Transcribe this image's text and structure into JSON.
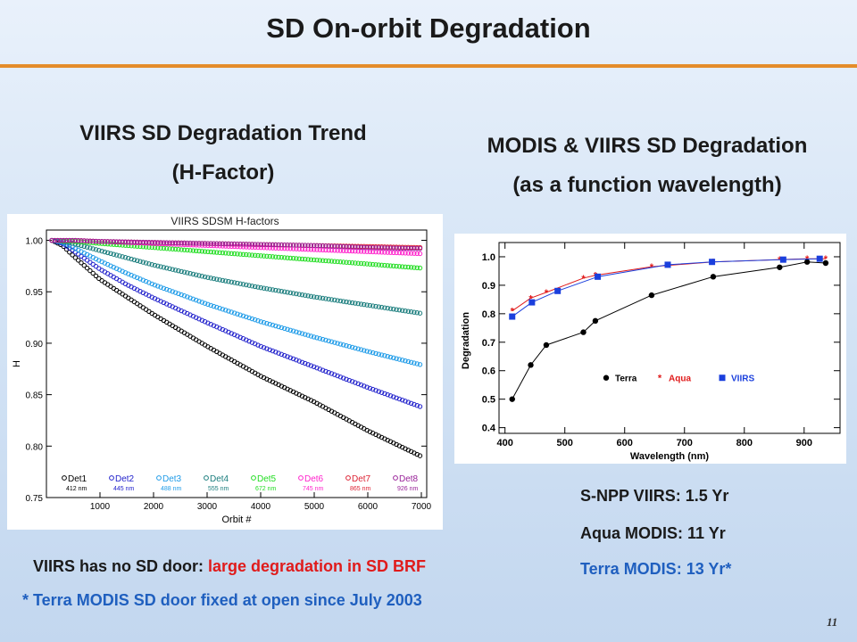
{
  "slide": {
    "title": "SD On-orbit Degradation",
    "page_number": "11"
  },
  "left_heading": {
    "line1": "VIIRS SD Degradation Trend",
    "line2": "(H-Factor)"
  },
  "right_heading": {
    "line1": "MODIS & VIIRS SD Degradation",
    "line2": "(as a function wavelength)"
  },
  "mission_years": {
    "line1": "S-NPP VIIRS: 1.5 Yr",
    "line2": "Aqua MODIS: 11 Yr",
    "line3": "Terra MODIS: 13 Yr*"
  },
  "notes": {
    "line1_prefix": "VIIRS has no SD door: ",
    "line1_highlight": "large degradation in SD BRF",
    "line2": "* Terra MODIS SD door fixed at open since July 2003"
  },
  "colors": {
    "accent_rule": "#e48c2a",
    "highlight_red": "#e01b1b",
    "highlight_blue": "#1f5fbf"
  },
  "chart_data": [
    {
      "type": "scatter",
      "title": "VIIRS SDSM H-factors",
      "xlabel": "Orbit #",
      "ylabel": "H",
      "xlim": [
        0,
        7100
      ],
      "ylim": [
        0.75,
        1.01
      ],
      "xticks": [
        1000,
        2000,
        3000,
        4000,
        5000,
        6000,
        7000
      ],
      "yticks": [
        0.75,
        0.8,
        0.85,
        0.9,
        0.95,
        1.0
      ],
      "ytick_labels": [
        "0.75",
        "0.80",
        "0.85",
        "0.90",
        "0.95",
        "1.00"
      ],
      "legend_position": "bottom",
      "series": [
        {
          "name": "Det1",
          "wavelength": "412 nm",
          "color": "#000000",
          "x": [
            100,
            300,
            500,
            1000,
            1500,
            2000,
            3000,
            4000,
            5000,
            6000,
            7000
          ],
          "y": [
            1.0,
            0.995,
            0.985,
            0.962,
            0.945,
            0.928,
            0.897,
            0.868,
            0.843,
            0.815,
            0.79
          ]
        },
        {
          "name": "Det2",
          "wavelength": "445 nm",
          "color": "#2222cc",
          "x": [
            100,
            300,
            500,
            1000,
            1500,
            2000,
            3000,
            4000,
            5000,
            6000,
            7000
          ],
          "y": [
            1.0,
            0.997,
            0.99,
            0.972,
            0.957,
            0.944,
            0.92,
            0.897,
            0.877,
            0.857,
            0.838
          ]
        },
        {
          "name": "Det3",
          "wavelength": "488 nm",
          "color": "#1e9be8",
          "x": [
            100,
            300,
            500,
            1000,
            1500,
            2000,
            3000,
            4000,
            5000,
            6000,
            7000
          ],
          "y": [
            1.0,
            0.998,
            0.993,
            0.98,
            0.968,
            0.957,
            0.938,
            0.921,
            0.906,
            0.892,
            0.879
          ]
        },
        {
          "name": "Det4",
          "wavelength": "555 nm",
          "color": "#1a7d7d",
          "x": [
            100,
            300,
            500,
            1000,
            1500,
            2000,
            3000,
            4000,
            5000,
            6000,
            7000
          ],
          "y": [
            1.0,
            0.999,
            0.997,
            0.99,
            0.983,
            0.976,
            0.964,
            0.954,
            0.945,
            0.937,
            0.929
          ]
        },
        {
          "name": "Det5",
          "wavelength": "672 nm",
          "color": "#22dd22",
          "x": [
            100,
            500,
            1000,
            2000,
            3000,
            4000,
            5000,
            6000,
            7000
          ],
          "y": [
            1.0,
            0.999,
            0.997,
            0.993,
            0.989,
            0.985,
            0.981,
            0.977,
            0.973
          ]
        },
        {
          "name": "Det6",
          "wavelength": "745 nm",
          "color": "#ff22cc",
          "x": [
            100,
            500,
            1000,
            2000,
            3000,
            4000,
            5000,
            6000,
            7000
          ],
          "y": [
            1.0,
            1.0,
            0.999,
            0.997,
            0.995,
            0.993,
            0.991,
            0.989,
            0.987
          ]
        },
        {
          "name": "Det7",
          "wavelength": "865 nm",
          "color": "#dd2233",
          "x": [
            100,
            500,
            1000,
            2000,
            3000,
            4000,
            5000,
            6000,
            7000
          ],
          "y": [
            1.0,
            1.0,
            0.999,
            0.998,
            0.997,
            0.996,
            0.995,
            0.994,
            0.993
          ]
        },
        {
          "name": "Det8",
          "wavelength": "926 nm",
          "color": "#992299",
          "x": [
            100,
            500,
            1000,
            2000,
            3000,
            4000,
            5000,
            6000,
            7000
          ],
          "y": [
            1.0,
            1.0,
            0.999,
            0.998,
            0.997,
            0.996,
            0.995,
            0.993,
            0.992
          ]
        }
      ]
    },
    {
      "type": "line",
      "title": "",
      "xlabel": "Wavelength (nm)",
      "ylabel": "Degradation",
      "xlim": [
        390,
        960
      ],
      "ylim": [
        0.38,
        1.05
      ],
      "xticks": [
        400,
        500,
        600,
        700,
        800,
        900
      ],
      "yticks": [
        0.4,
        0.5,
        0.6,
        0.7,
        0.8,
        0.9,
        1.0
      ],
      "ytick_labels": [
        "0.4",
        "0.5",
        "0.6",
        "0.7",
        "0.8",
        "0.9",
        "1.0"
      ],
      "legend_position": "bottom-right",
      "series": [
        {
          "name": "Terra",
          "color": "#000000",
          "marker": "circle",
          "x": [
            412,
            443,
            469,
            531,
            551,
            645,
            748,
            859,
            905,
            936
          ],
          "y": [
            0.5,
            0.62,
            0.69,
            0.735,
            0.775,
            0.865,
            0.93,
            0.963,
            0.982,
            0.978
          ]
        },
        {
          "name": "Aqua",
          "color": "#e01b1b",
          "marker": "star",
          "x": [
            412,
            443,
            469,
            531,
            551,
            645,
            748,
            859,
            905,
            936
          ],
          "y": [
            0.81,
            0.855,
            0.875,
            0.925,
            0.935,
            0.965,
            0.982,
            0.99,
            0.993,
            0.993
          ]
        },
        {
          "name": "VIIRS",
          "color": "#1a3fdd",
          "marker": "square",
          "x": [
            412,
            445,
            488,
            555,
            672,
            746,
            865,
            926
          ],
          "y": [
            0.79,
            0.84,
            0.88,
            0.93,
            0.972,
            0.982,
            0.99,
            0.993
          ]
        }
      ]
    }
  ]
}
